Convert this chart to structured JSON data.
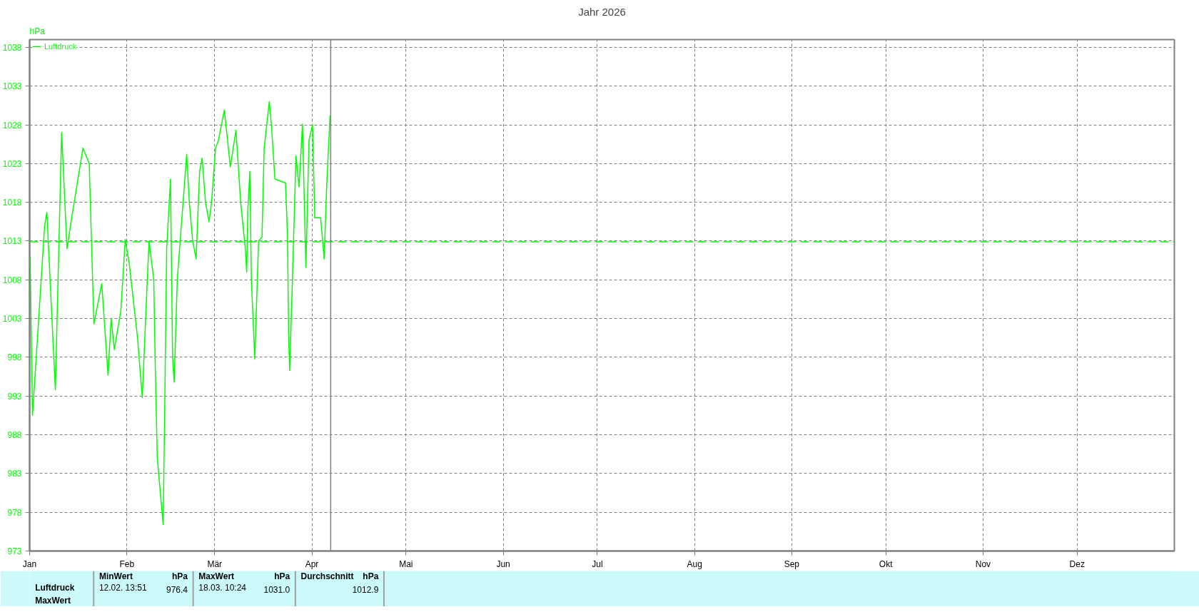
{
  "chart_data": {
    "type": "line",
    "title": "Jahr 2026",
    "ylabel": "hPa",
    "x": [
      "2026-01-01T04:00",
      "2026-01-01T22:00",
      "2026-01-05T19:00",
      "2026-01-06T12:00",
      "2026-01-09T05:00",
      "2026-01-11T05:00",
      "2026-01-12T22:00",
      "2026-01-14T10:00",
      "2026-01-18T00:00",
      "2026-01-20T00:00",
      "2026-01-21T12:00",
      "2026-01-24T00:00",
      "2026-01-26T00:00",
      "2026-01-27T00:00",
      "2026-01-28T00:00",
      "2026-01-30T02:00",
      "2026-01-31T12:00",
      "2026-02-01T19:00",
      "2026-02-04T10:00",
      "2026-02-05T22:00",
      "2026-02-07T10:00",
      "2026-02-08T02:00",
      "2026-02-09T14:00",
      "2026-02-10T00:00",
      "2026-02-10T17:00",
      "2026-02-12T14:00",
      "2026-02-13T00:00",
      "2026-02-13T17:00",
      "2026-02-14T22:00",
      "2026-02-15T14:00",
      "2026-02-16T02:00",
      "2026-02-17T02:00",
      "2026-02-18T00:00",
      "2026-02-20T02:00",
      "2026-02-20T22:00",
      "2026-02-22T00:00",
      "2026-02-23T02:00",
      "2026-02-24T05:00",
      "2026-02-25T00:00",
      "2026-02-26T02:00",
      "2026-02-27T05:00",
      "2026-02-28T00:00",
      "2026-03-01T07:00",
      "2026-03-02T05:00",
      "2026-03-04T02:00",
      "2026-03-06T00:00",
      "2026-03-07T19:00",
      "2026-03-09T07:00",
      "2026-03-10T19:00",
      "2026-03-11T05:00",
      "2026-03-11T14:00",
      "2026-03-12T05:00",
      "2026-03-12T17:00",
      "2026-03-13T19:00",
      "2026-03-15T00:00",
      "2026-03-16T02:00",
      "2026-03-16T19:00",
      "2026-03-18T10:00",
      "2026-03-19T02:00",
      "2026-03-20T05:00",
      "2026-03-23T14:00",
      "2026-03-24T05:00",
      "2026-03-24T14:00",
      "2026-03-24T22:00",
      "2026-03-25T19:00",
      "2026-03-26T22:00",
      "2026-03-27T22:00",
      "2026-03-29T00:00",
      "2026-03-30T02:00",
      "2026-03-31T02:00",
      "2026-04-01T05:00",
      "2026-04-01T22:00",
      "2026-04-03T19:00",
      "2026-04-04T22:00",
      "2026-04-05T17:00",
      "2026-04-06T19:00"
    ],
    "series": [
      {
        "name": "Luftdruck",
        "color": "#00ff00",
        "values": [
          1011,
          990.5,
          1015,
          1016.7,
          993.8,
          1027,
          1012,
          1016,
          1025,
          1023,
          1002.3,
          1007.5,
          995.7,
          1003,
          999,
          1004,
          1013.2,
          1010,
          1000.5,
          992.8,
          1007,
          1013,
          1008,
          998,
          985,
          976.4,
          989,
          1012,
          1021,
          998,
          994.8,
          1008,
          1013,
          1024.2,
          1018,
          1013,
          1010.7,
          1022,
          1023.7,
          1018,
          1015.5,
          1018,
          1025,
          1026,
          1029.9,
          1022.6,
          1027.3,
          1018,
          1012,
          1009,
          1017,
          1022,
          1008,
          997.8,
          1013,
          1013.5,
          1025,
          1031,
          1028,
          1021,
          1020.5,
          1014,
          1001,
          996.3,
          1008,
          1024,
          1020,
          1028.1,
          1009.6,
          1026,
          1028,
          1016,
          1016,
          1010.7,
          1020,
          1029.2
        ]
      }
    ],
    "xlim": [
      "2026-01-01",
      "2027-01-01"
    ],
    "xticks": [
      {
        "value": "2026-01-01",
        "label": "Jan"
      },
      {
        "value": "2026-02-01",
        "label": "Feb"
      },
      {
        "value": "2026-03-01",
        "label": "Mär"
      },
      {
        "value": "2026-04-01",
        "label": "Apr"
      },
      {
        "value": "2026-05-01",
        "label": "Mai"
      },
      {
        "value": "2026-06-01",
        "label": "Jun"
      },
      {
        "value": "2026-07-01",
        "label": "Jul"
      },
      {
        "value": "2026-08-01",
        "label": "Aug"
      },
      {
        "value": "2026-09-01",
        "label": "Sep"
      },
      {
        "value": "2026-10-01",
        "label": "Okt"
      },
      {
        "value": "2026-11-01",
        "label": "Nov"
      },
      {
        "value": "2026-12-01",
        "label": "Dez"
      }
    ],
    "ylim": [
      973,
      1039
    ],
    "yticks": [
      973,
      978,
      983,
      988,
      993,
      998,
      1003,
      1008,
      1013,
      1018,
      1023,
      1028,
      1033,
      1038
    ],
    "ref_lines": [
      {
        "axis": "y",
        "value": 1012.9,
        "label": null,
        "color": "#00ff00",
        "line_style": "dashed"
      },
      {
        "axis": "x",
        "value": "2026-04-07",
        "label": null,
        "color": "#808080",
        "line_style": "solid"
      }
    ],
    "grid": true,
    "legend": "top left",
    "marker": "none",
    "line_style": "solid",
    "annotations": [
      "Luftdruck",
      "MaxWert",
      "MinWert",
      "hPa",
      "12.02.  13:51",
      "976.4",
      "MaxWert",
      "hPa",
      "18.03.  10:24",
      "1031.0",
      "Durchschnitt",
      "hPa",
      "1012.9"
    ]
  }
}
